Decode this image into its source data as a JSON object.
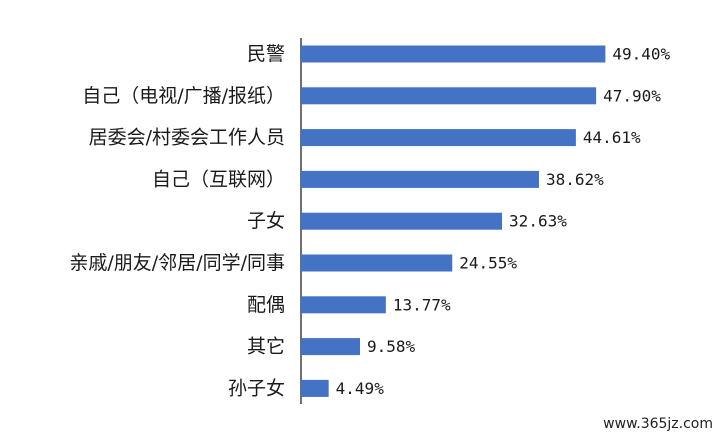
{
  "chart_data": {
    "type": "bar",
    "orientation": "horizontal",
    "categories": [
      "民警",
      "自己（电视/广播/报纸）",
      "居委会/村委会工作人员",
      "自己（互联网）",
      "子女",
      "亲戚/朋友/邻居/同学/同事",
      "配偶",
      "其它",
      "孙子女"
    ],
    "values": [
      49.4,
      47.9,
      44.61,
      38.62,
      32.63,
      24.55,
      13.77,
      9.58,
      4.49
    ],
    "value_labels": [
      "49.40%",
      "47.90%",
      "44.61%",
      "38.62%",
      "32.63%",
      "24.55%",
      "13.77%",
      "9.58%",
      "4.49%"
    ],
    "xlim": [
      0,
      68
    ],
    "bar_color": "#4472c4",
    "axis_color": "#222222",
    "grid": false,
    "legend": "none"
  },
  "watermark": "www.365jz.com"
}
